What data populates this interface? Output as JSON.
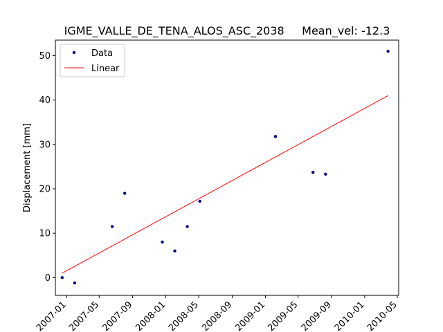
{
  "chart_data": {
    "type": "scatter",
    "title": "IGME_VALLE_DE_TENA_ALOS_ASC_2038     Mean_vel: -12.3",
    "xlabel": "",
    "ylabel": "Displacement [mm]",
    "xlim": [
      "2006-11-21",
      "2010-05-06"
    ],
    "ylim": [
      -4,
      53.5
    ],
    "yticks": [
      0,
      10,
      20,
      30,
      40,
      50
    ],
    "xticks": [
      "2007-01",
      "2007-05",
      "2007-09",
      "2008-01",
      "2008-05",
      "2008-09",
      "2009-01",
      "2009-05",
      "2009-09",
      "2010-01",
      "2010-05"
    ],
    "grid": false,
    "legend": {
      "position": "top-left",
      "entries": [
        "Data",
        "Linear"
      ]
    },
    "series": [
      {
        "name": "Data",
        "kind": "points",
        "color": "#000080",
        "points": [
          {
            "x": "2006-12-16",
            "y": 0.0
          },
          {
            "x": "2007-01-31",
            "y": -1.2
          },
          {
            "x": "2007-06-18",
            "y": 11.5
          },
          {
            "x": "2007-08-03",
            "y": 19.0
          },
          {
            "x": "2007-12-19",
            "y": 8.0
          },
          {
            "x": "2008-02-03",
            "y": 6.0
          },
          {
            "x": "2008-03-20",
            "y": 11.5
          },
          {
            "x": "2008-05-05",
            "y": 17.2
          },
          {
            "x": "2009-02-07",
            "y": 31.8
          },
          {
            "x": "2009-06-25",
            "y": 23.7
          },
          {
            "x": "2009-08-10",
            "y": 23.3
          },
          {
            "x": "2010-03-28",
            "y": 51.0
          }
        ]
      },
      {
        "name": "Linear",
        "kind": "line",
        "color": "#ff0000",
        "points": [
          {
            "x": "2006-12-16",
            "y": 1.0
          },
          {
            "x": "2010-03-28",
            "y": 41.0
          }
        ]
      }
    ]
  }
}
